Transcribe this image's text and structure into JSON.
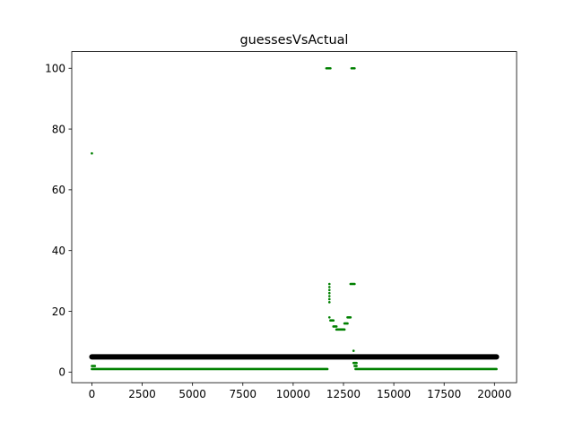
{
  "chart_data": {
    "type": "scatter",
    "title": "guessesVsActual",
    "xlabel": "",
    "ylabel": "",
    "xlim": [
      -1000,
      21100
    ],
    "ylim": [
      -3.5,
      105.5
    ],
    "x_ticks": [
      0,
      2500,
      5000,
      7500,
      10000,
      12500,
      15000,
      17500,
      20000
    ],
    "y_ticks": [
      0,
      20,
      40,
      60,
      80,
      100
    ],
    "grid": false,
    "legend": "none",
    "series": [
      {
        "color": "#000000",
        "marker_size": "large",
        "segments": [
          {
            "x": [
              0,
              20100
            ],
            "y": 5
          }
        ],
        "points": []
      },
      {
        "color": "#008000",
        "marker_size": "small",
        "segments": [
          {
            "x": [
              0,
              150
            ],
            "y": 2
          },
          {
            "x": [
              0,
              11700
            ],
            "y": 1
          },
          {
            "x": [
              13100,
              20100
            ],
            "y": 1
          },
          {
            "x": [
              11650,
              11850
            ],
            "y": 100
          },
          {
            "x": [
              12900,
              13050
            ],
            "y": 100
          },
          {
            "x": [
              12850,
              13050
            ],
            "y": 29
          },
          {
            "x": [
              11850,
              12000
            ],
            "y": 17
          },
          {
            "x": [
              12000,
              12150
            ],
            "y": 15
          },
          {
            "x": [
              12150,
              12550
            ],
            "y": 14
          },
          {
            "x": [
              12550,
              12700
            ],
            "y": 16
          },
          {
            "x": [
              12700,
              12850
            ],
            "y": 18
          },
          {
            "x": [
              13000,
              13150
            ],
            "y": 3
          },
          {
            "x": [
              13050,
              13150
            ],
            "y": 2
          }
        ],
        "points": [
          {
            "x": 0,
            "y": 72
          },
          {
            "x": 11800,
            "y": 29
          },
          {
            "x": 11800,
            "y": 28
          },
          {
            "x": 11800,
            "y": 27
          },
          {
            "x": 11800,
            "y": 26
          },
          {
            "x": 11800,
            "y": 25
          },
          {
            "x": 11800,
            "y": 24
          },
          {
            "x": 11800,
            "y": 23
          },
          {
            "x": 11800,
            "y": 18
          },
          {
            "x": 13000,
            "y": 7
          }
        ]
      }
    ]
  }
}
